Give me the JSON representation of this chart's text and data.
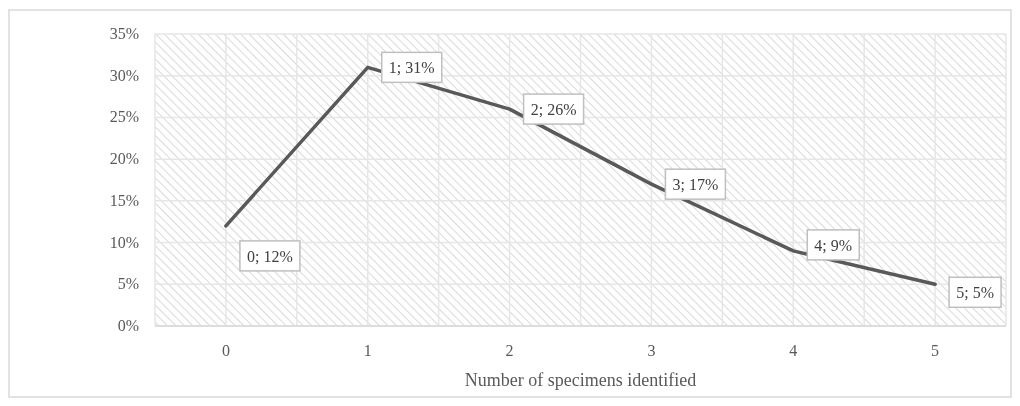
{
  "chart_data": {
    "type": "line",
    "xlabel": "Number of specimens identified",
    "categories": [
      "0",
      "1",
      "2",
      "3",
      "4",
      "5"
    ],
    "series": [
      {
        "color": "#595959",
        "values": [
          12,
          31,
          26,
          17,
          9,
          5
        ],
        "value_labels": [
          "0; 12%",
          "1; 31%",
          "2; 26%",
          "3; 17%",
          "4; 9%",
          "5; 5%"
        ]
      }
    ],
    "ylim": [
      0,
      35
    ],
    "yticks": [
      {
        "value": 0,
        "label": "0%"
      },
      {
        "value": 5,
        "label": "5%"
      },
      {
        "value": 10,
        "label": "10%"
      },
      {
        "value": 15,
        "label": "15%"
      },
      {
        "value": 20,
        "label": "20%"
      },
      {
        "value": 25,
        "label": "25%"
      },
      {
        "value": 30,
        "label": "30%"
      },
      {
        "value": 35,
        "label": "35%"
      }
    ],
    "grid": true,
    "marker": "none",
    "line_style": "solid"
  }
}
